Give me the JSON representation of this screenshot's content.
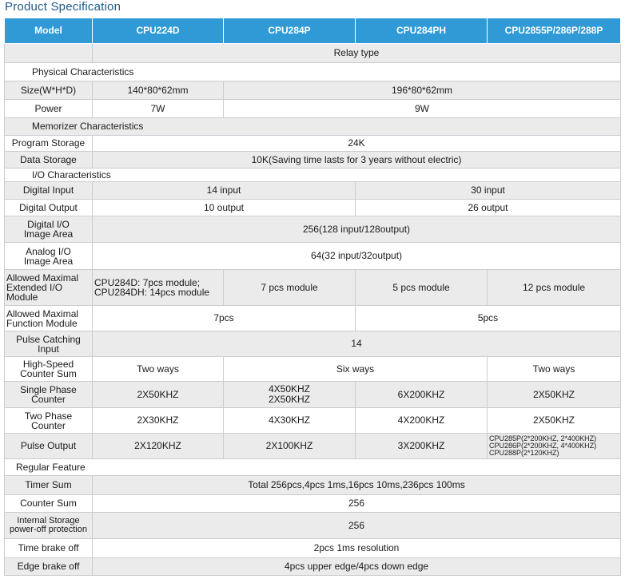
{
  "title": "Product Specification",
  "header": [
    "Model",
    "CPU224D",
    "CPU284P",
    "CPU284PH",
    "CPU2855P/286P/288P"
  ],
  "relay_type": "Relay type",
  "sections": {
    "physical": "Physical Characteristics",
    "memorizer": "Memorizer Characteristics",
    "io": "I/O Characteristics",
    "regular": "Regular Feature"
  },
  "rows": {
    "size": {
      "label": "Size(W*H*D)",
      "v1": "140*80*62mm",
      "v2": "196*80*62mm"
    },
    "power": {
      "label": "Power",
      "v1": "7W",
      "v2": "9W"
    },
    "program_storage": {
      "label": "Program Storage",
      "v": "24K"
    },
    "data_storage": {
      "label": "Data Storage",
      "v": "10K(Saving time lasts for 3 years without electric)"
    },
    "digital_input": {
      "label": "Digital Input",
      "v1": "14 input",
      "v2": "30 input"
    },
    "digital_output": {
      "label": "Digital Output",
      "v1": "10 output",
      "v2": "26 output"
    },
    "digital_io": {
      "label_1": "Digital I/O",
      "label_2": "Image Area",
      "v": "256(128 input/128output)"
    },
    "analog_io": {
      "label_1": "Analog I/O",
      "label_2": "Image Area",
      "v": "64(32 input/32output)"
    },
    "ext_module": {
      "label_1": "Allowed Maximal",
      "label_2": "Extended I/O",
      "label_3": "Module",
      "v1_1": "CPU284D: 7pcs module;",
      "v1_2": "CPU284DH: 14pcs module",
      "v2": "7 pcs module",
      "v3": "5 pcs module",
      "v4": "12 pcs module"
    },
    "func_module": {
      "label_1": "Allowed Maximal",
      "label_2": "Function Module",
      "v1": "7pcs",
      "v2": "5pcs"
    },
    "pulse_catch": {
      "label_1": "Pulse Catching",
      "label_2": "Input",
      "v": "14"
    },
    "hs_counter": {
      "label_1": "High-Speed",
      "label_2": "Counter Sum",
      "v1": "Two ways",
      "v2": "Six ways",
      "v3": "Two ways"
    },
    "single_phase": {
      "label_1": "Single Phase",
      "label_2": "Counter",
      "v1": "2X50KHZ",
      "v2_1": "4X50KHZ",
      "v2_2": "2X50KHZ",
      "v3": "6X200KHZ",
      "v4": "2X50KHZ"
    },
    "two_phase": {
      "label_1": "Two Phase",
      "label_2": "Counter",
      "v1": "2X30KHZ",
      "v2": "4X30KHZ",
      "v3": "4X200KHZ",
      "v4": "2X50KHZ"
    },
    "pulse_output": {
      "label": "Pulse Output",
      "v1": "2X120KHZ",
      "v2": "2X100KHZ",
      "v3": "3X200KHZ",
      "v4_1": "CPU285P(2*200KHZ, 2*400KHZ)",
      "v4_2": "CPU286P(2*200KHZ, 4*400KHZ)",
      "v4_3": "CPU288P(2*120KHZ)"
    },
    "timer_sum": {
      "label": "Timer Sum",
      "v": "Total 256pcs,4pcs 1ms,16pcs 10ms,236pcs 100ms"
    },
    "counter_sum": {
      "label": "Counter Sum",
      "v": "256"
    },
    "internal_storage": {
      "label_1": "Internal Storage",
      "label_2": "power-off protection",
      "v": "256"
    },
    "time_brake": {
      "label": "Time brake off",
      "v": "2pcs 1ms resolution"
    },
    "edge_brake": {
      "label": "Edge brake off",
      "v": "4pcs upper edge/4pcs down edge"
    }
  }
}
